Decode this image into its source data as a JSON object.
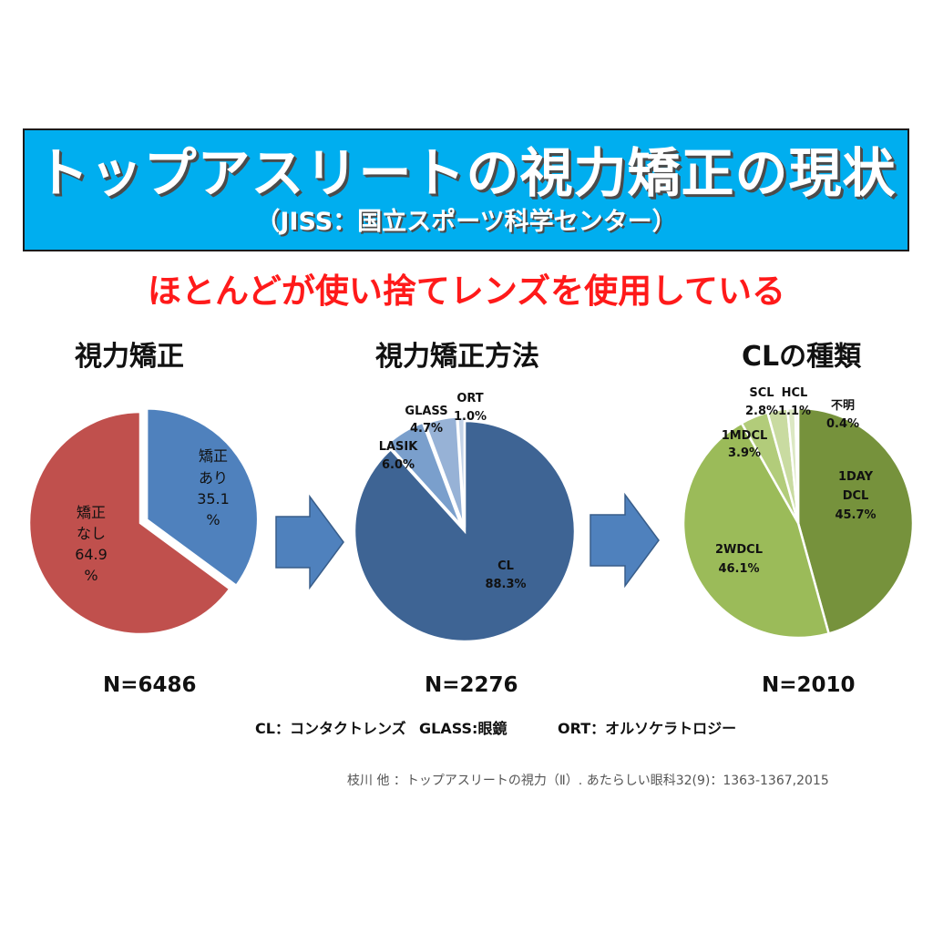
{
  "header": {
    "title": "トップアスリートの視力矯正の現状",
    "subtitle": "（JISS：国立スポーツ科学センター）"
  },
  "headline": "ほとんどが使い捨てレンズを使用している",
  "legend_abbreviations": [
    "CL：コンタクトレンズ",
    "GLASS:眼鏡",
    "ORT：オルソケラトロジー"
  ],
  "citation": "枝川 他 ：トップアスリートの視力（Ⅱ）. あたらしい眼科32(9)：1363-1367,2015",
  "colors": {
    "title_bg": "#00aeef",
    "headline": "#ff1a1a",
    "arrow": "#4f81bd",
    "pie1_none": "#c0504d",
    "pie1_yes": "#4f81bd",
    "pie2": [
      "#3e6494",
      "#7a9fcc",
      "#97b2d6",
      "#c3d3e8"
    ],
    "pie3": [
      "#76923c",
      "#9bbb59",
      "#b2cc7a",
      "#c9dba1",
      "#dce8c3",
      "#eef3e2"
    ]
  },
  "chart_data": [
    {
      "type": "pie",
      "title": "視力矯正",
      "n_label": "N=6486",
      "slices": [
        {
          "label": "矯正あり",
          "value": 35.1,
          "display": "35.1%"
        },
        {
          "label": "矯正なし",
          "value": 64.9,
          "display": "64.9%"
        }
      ]
    },
    {
      "type": "pie",
      "title": "視力矯正方法",
      "n_label": "N=2276",
      "slices": [
        {
          "label": "CL",
          "value": 88.3,
          "display": "88.3%"
        },
        {
          "label": "LASIK",
          "value": 6.0,
          "display": "6.0%"
        },
        {
          "label": "GLASS",
          "value": 4.7,
          "display": "4.7%"
        },
        {
          "label": "ORT",
          "value": 1.0,
          "display": "1.0%"
        }
      ]
    },
    {
      "type": "pie",
      "title": "CLの種類",
      "n_label": "N=2010",
      "slices": [
        {
          "label": "1DAY DCL",
          "value": 45.7,
          "display": "45.7%"
        },
        {
          "label": "2WDCL",
          "value": 46.1,
          "display": "46.1%"
        },
        {
          "label": "1MDCL",
          "value": 3.9,
          "display": "3.9%"
        },
        {
          "label": "SCL",
          "value": 2.8,
          "display": "2.8%"
        },
        {
          "label": "HCL",
          "value": 1.1,
          "display": "1.1%"
        },
        {
          "label": "不明",
          "value": 0.4,
          "display": "0.4%"
        }
      ]
    }
  ]
}
